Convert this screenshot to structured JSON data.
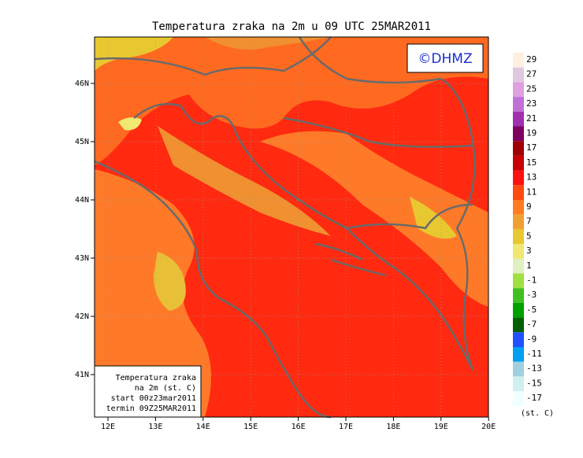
{
  "title": "Temperatura zraka na 2m u 09 UTC 25MAR2011",
  "logo": "©DHMZ",
  "lon_labels": [
    "12E",
    "13E",
    "14E",
    "15E",
    "16E",
    "17E",
    "18E",
    "19E",
    "20E"
  ],
  "lat_labels": [
    "46N",
    "45N",
    "44N",
    "43N",
    "42N",
    "41N"
  ],
  "info_box": [
    "Temperatura zraka",
    "na 2m (st. C)",
    "start 00z23mar2011",
    "termin 09Z25MAR2011"
  ],
  "colorbar": {
    "unit": "(st. C)",
    "levels": [
      29,
      27,
      25,
      23,
      21,
      19,
      17,
      15,
      13,
      11,
      9,
      7,
      5,
      3,
      1,
      -1,
      -3,
      -5,
      -7,
      -9,
      -11,
      -13,
      -15,
      -17
    ],
    "colors": [
      "#fff0e0",
      "#e0c8e0",
      "#e0a0e0",
      "#c070d8",
      "#a030b0",
      "#800060",
      "#a00000",
      "#c80000",
      "#ff1010",
      "#ff4a10",
      "#ff7a20",
      "#f0a030",
      "#e8c830",
      "#f0e870",
      "#e0f0c0",
      "#a0e040",
      "#40c020",
      "#00a000",
      "#006000",
      "#2050ff",
      "#00a0f0",
      "#a0d0e0",
      "#d0f0f0",
      "#f0ffff"
    ]
  }
}
